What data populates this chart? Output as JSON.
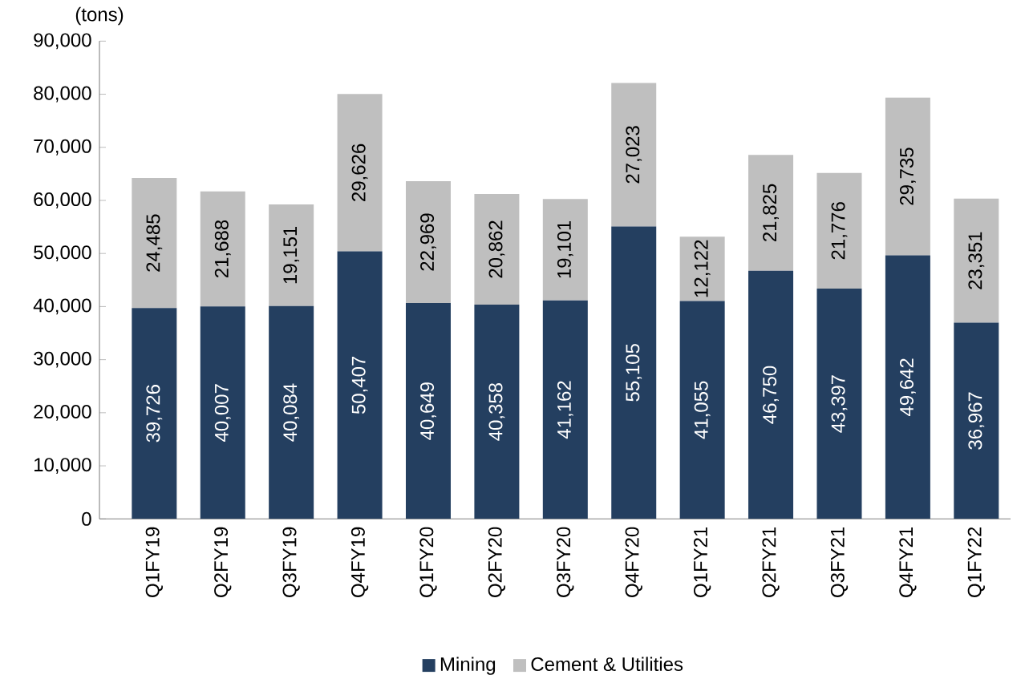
{
  "chart_data": {
    "type": "bar",
    "stacked": true,
    "ylabel": "(tons)",
    "categories": [
      "Q1FY19",
      "Q2FY19",
      "Q3FY19",
      "Q4FY19",
      "Q1FY20",
      "Q2FY20",
      "Q3FY20",
      "Q4FY20",
      "Q1FY21",
      "Q2FY21",
      "Q3FY21",
      "Q4FY21",
      "Q1FY22"
    ],
    "series": [
      {
        "name": "Mining",
        "color": "#243f60",
        "values": [
          39726,
          40007,
          40084,
          50407,
          40649,
          40358,
          41162,
          55105,
          41055,
          46750,
          43397,
          49642,
          36967
        ],
        "value_labels": [
          "39,726",
          "40,007",
          "40,084",
          "50,407",
          "40,649",
          "40,358",
          "41,162",
          "55,105",
          "41,055",
          "46,750",
          "43,397",
          "49,642",
          "36,967"
        ]
      },
      {
        "name": "Cement & Utilities",
        "color": "#bfbfbf",
        "values": [
          24485,
          21688,
          19151,
          29626,
          22969,
          20862,
          19101,
          27023,
          12122,
          21825,
          21776,
          29735,
          23351
        ],
        "value_labels": [
          "24,485",
          "21,688",
          "19,151",
          "29,626",
          "22,969",
          "20,862",
          "19,101",
          "27,023",
          "12,122",
          "21,825",
          "21,776",
          "29,735",
          "23,351"
        ]
      }
    ],
    "ylim": [
      0,
      90000
    ],
    "yticks": [
      {
        "value": 0,
        "label": "0"
      },
      {
        "value": 10000,
        "label": "10,000"
      },
      {
        "value": 20000,
        "label": "20,000"
      },
      {
        "value": 30000,
        "label": "30,000"
      },
      {
        "value": 40000,
        "label": "40,000"
      },
      {
        "value": 50000,
        "label": "50,000"
      },
      {
        "value": 60000,
        "label": "60,000"
      },
      {
        "value": 70000,
        "label": "70,000"
      },
      {
        "value": 80000,
        "label": "80,000"
      },
      {
        "value": 90000,
        "label": "90,000"
      }
    ],
    "grid": false,
    "legend": "bottom"
  }
}
